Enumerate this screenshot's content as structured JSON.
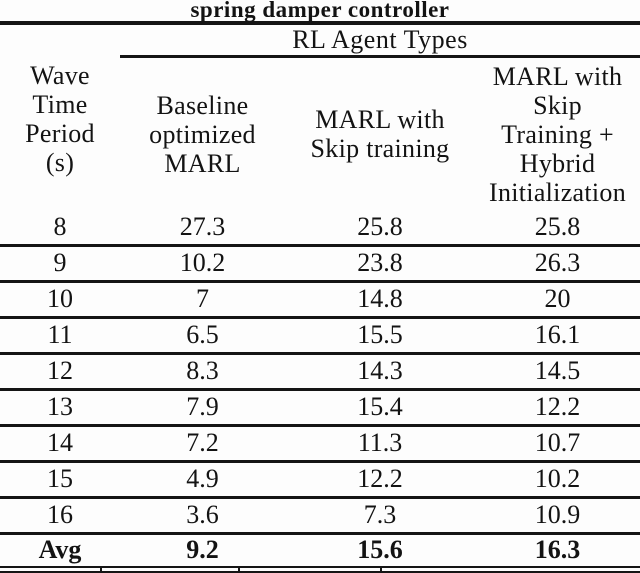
{
  "title": "spring damper controller",
  "table": {
    "group_header": "RL Agent Types",
    "row_header_label": "Wave\nTime\nPeriod\n(s)",
    "columns": [
      "Baseline\noptimized\nMARL",
      "MARL with\nSkip training",
      "MARL with\nSkip\nTraining +\nHybrid\nInitialization"
    ],
    "rows": [
      {
        "period": "8",
        "values": [
          "27.3",
          "25.8",
          "25.8"
        ]
      },
      {
        "period": "9",
        "values": [
          "10.2",
          "23.8",
          "26.3"
        ]
      },
      {
        "period": "10",
        "values": [
          "7",
          "14.8",
          "20"
        ]
      },
      {
        "period": "11",
        "values": [
          "6.5",
          "15.5",
          "16.1"
        ]
      },
      {
        "period": "12",
        "values": [
          "8.3",
          "14.3",
          "14.5"
        ]
      },
      {
        "period": "13",
        "values": [
          "7.9",
          "15.4",
          "12.2"
        ]
      },
      {
        "period": "14",
        "values": [
          "7.2",
          "11.3",
          "10.7"
        ]
      },
      {
        "period": "15",
        "values": [
          "4.9",
          "12.2",
          "10.2"
        ]
      },
      {
        "period": "16",
        "values": [
          "3.6",
          "7.3",
          "10.9"
        ]
      }
    ],
    "avg_row": {
      "label": "Avg",
      "values": [
        "9.2",
        "15.6",
        "16.3"
      ]
    }
  },
  "colors": {
    "text": "#131313",
    "rule": "#151515",
    "background": "#fdfdfd"
  }
}
